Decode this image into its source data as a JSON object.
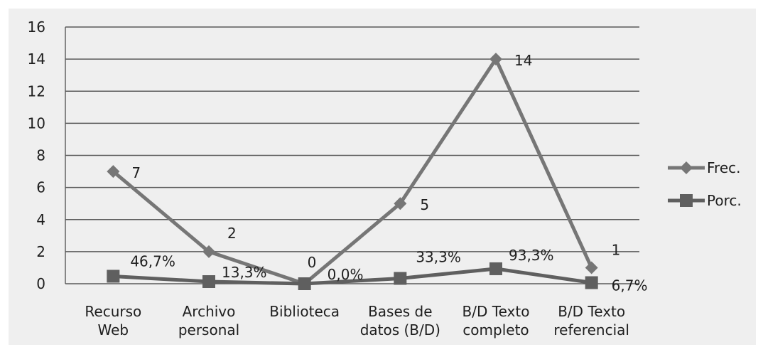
{
  "chart_data": {
    "type": "line",
    "title": "",
    "xlabel": "",
    "ylabel": "",
    "ylim": [
      0,
      16
    ],
    "yticks": [
      0,
      2,
      4,
      6,
      8,
      10,
      12,
      14,
      16
    ],
    "grid": true,
    "legend_position": "right",
    "categories": [
      [
        "Recurso",
        "Web"
      ],
      [
        "Archivo",
        "personal"
      ],
      [
        "Biblioteca"
      ],
      [
        "Bases de",
        "datos (B/D)"
      ],
      [
        "B/D Texto",
        "completo"
      ],
      [
        "B/D Texto",
        "referencial"
      ]
    ],
    "series": [
      {
        "name": "Frec.",
        "marker": "diamond",
        "color": "#767676",
        "values": [
          7,
          2,
          0,
          5,
          14,
          1
        ],
        "labels": [
          "7",
          "2",
          "0",
          "5",
          "14",
          "1"
        ]
      },
      {
        "name": "Porc.",
        "marker": "square",
        "color": "#5f5f5f",
        "values": [
          0.467,
          0.133,
          0.0,
          0.333,
          0.933,
          0.067
        ],
        "labels": [
          "46,7%",
          "13,3%",
          "0,0%",
          "33,3%",
          "93,3%",
          "6,7%"
        ]
      }
    ]
  }
}
